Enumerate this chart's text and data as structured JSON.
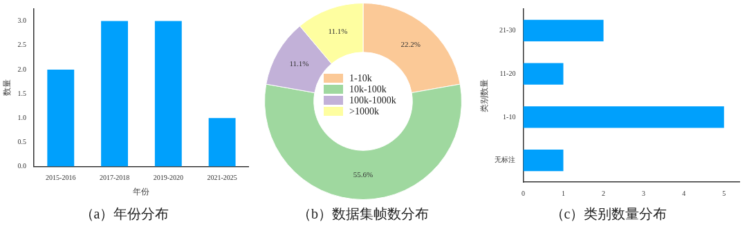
{
  "chart_data": [
    {
      "type": "bar",
      "title": "（a）年份分布",
      "xlabel": "年份",
      "ylabel": "数量",
      "categories": [
        "2015-2016",
        "2017-2018",
        "2019-2020",
        "2021-2025"
      ],
      "values": [
        2,
        3,
        3,
        1
      ],
      "color": "#00a0fc",
      "ylim": [
        0,
        3.25
      ],
      "yticks": [
        {
          "value": 0,
          "label": "0.0"
        },
        {
          "value": 0.5,
          "label": "0.5"
        },
        {
          "value": 1,
          "label": "1.0"
        },
        {
          "value": 1.5,
          "label": "1.5"
        },
        {
          "value": 2,
          "label": "2.0"
        },
        {
          "value": 2.5,
          "label": "2.5"
        },
        {
          "value": 3,
          "label": "3.0"
        }
      ],
      "grid": false,
      "legend": false
    },
    {
      "type": "donut",
      "title": "（b）数据集帧数分布",
      "categories": [
        "1-10k",
        "10k-100k",
        "100k-1000k",
        ">1000k"
      ],
      "values": [
        22.2,
        55.6,
        11.1,
        11.1
      ],
      "colors": [
        "#fbc997",
        "#9fd89f",
        "#c2b1d8",
        "#fefea0"
      ],
      "value_labels": [
        "22.2%",
        "55.6%",
        "11.1%",
        "11.1%"
      ],
      "legend": "center"
    },
    {
      "type": "bar",
      "orientation": "horizontal",
      "title": "（c）类别数量分布",
      "ylabel": "类别数量",
      "categories": [
        "21-30",
        "11-20",
        "1-10",
        "无标注"
      ],
      "values": [
        2,
        1,
        5,
        1
      ],
      "color": "#00a0fc",
      "xlim": [
        0,
        5.4
      ],
      "xticks": [
        0,
        1,
        2,
        3,
        4,
        5
      ],
      "grid": false,
      "legend": false
    }
  ]
}
